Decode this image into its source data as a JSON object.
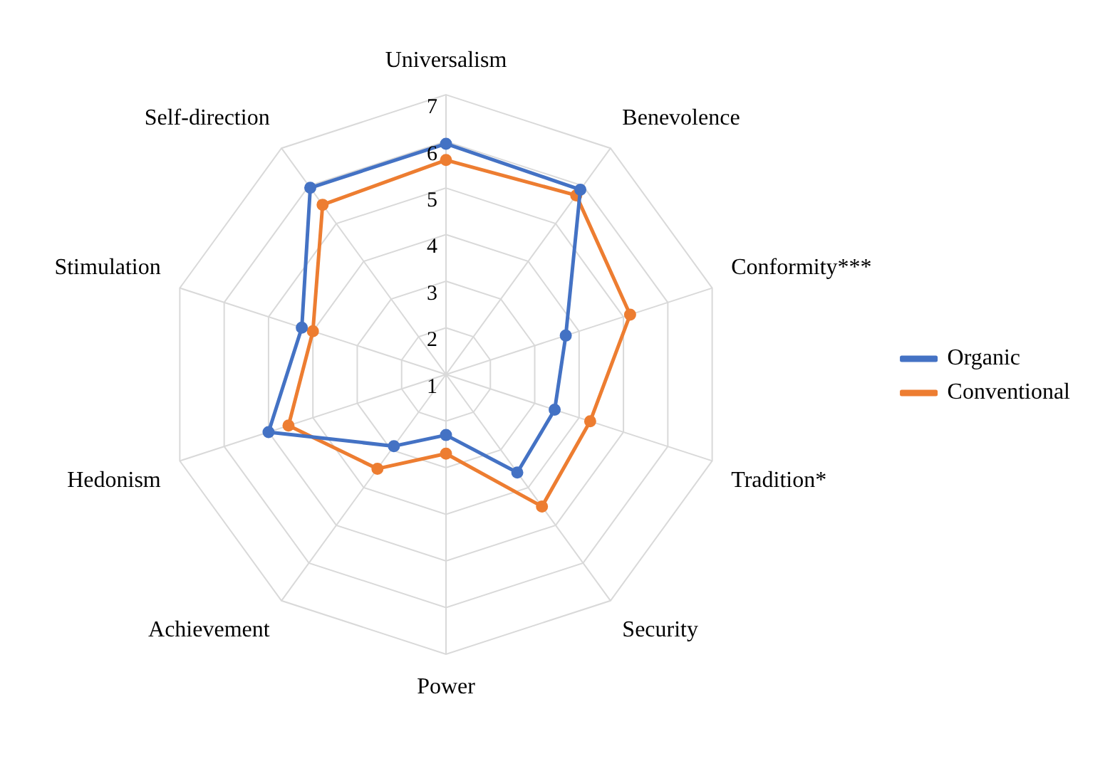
{
  "chart_data": {
    "type": "radar",
    "categories": [
      "Universalism",
      "Benevolence",
      "Conformity***",
      "Tradition*",
      "Security",
      "Power",
      "Achievement",
      "Hedonism",
      "Stimulation",
      "Self-direction"
    ],
    "series": [
      {
        "name": "Organic",
        "color": "#4472c4",
        "values": [
          5.95,
          5.9,
          3.7,
          3.45,
          3.6,
          2.3,
          2.9,
          5.0,
          4.25,
          5.95
        ]
      },
      {
        "name": "Conventional",
        "color": "#ed7d31",
        "values": [
          5.6,
          5.75,
          5.15,
          4.25,
          4.5,
          2.7,
          3.5,
          4.55,
          4.0,
          5.5
        ]
      }
    ],
    "ylim": [
      1,
      7
    ],
    "yticks": [
      1,
      2,
      3,
      4,
      5,
      6,
      7
    ],
    "grid": true,
    "legend": "right",
    "marker": "circle"
  }
}
